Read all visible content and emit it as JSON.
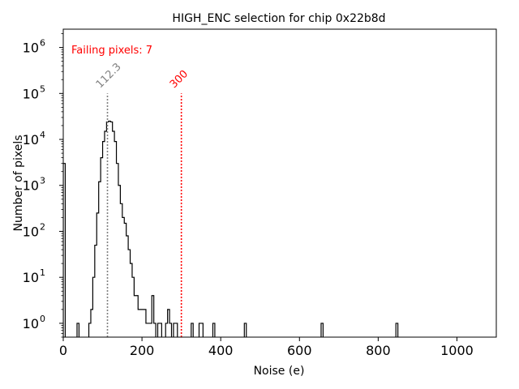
{
  "chart_data": {
    "type": "histogram",
    "title": "HIGH_ENC selection for chip 0x22b8d",
    "xlabel": "Noise (e)",
    "ylabel": "Number of pixels",
    "xlim": [
      0,
      1100
    ],
    "ylim": [
      0.5,
      2500000
    ],
    "yscale": "log",
    "x_ticks": [
      "0",
      "200",
      "400",
      "600",
      "800",
      "1000"
    ],
    "y_ticks": [
      {
        "base": "10",
        "exp": "0"
      },
      {
        "base": "10",
        "exp": "1"
      },
      {
        "base": "10",
        "exp": "2"
      },
      {
        "base": "10",
        "exp": "3"
      },
      {
        "base": "10",
        "exp": "4"
      },
      {
        "base": "10",
        "exp": "5"
      },
      {
        "base": "10",
        "exp": "6"
      }
    ],
    "bin_width": 5,
    "bins": [
      [
        0,
        3000
      ],
      [
        35,
        1
      ],
      [
        65,
        1
      ],
      [
        70,
        2
      ],
      [
        75,
        10
      ],
      [
        80,
        50
      ],
      [
        85,
        250
      ],
      [
        90,
        1200
      ],
      [
        95,
        4000
      ],
      [
        100,
        9000
      ],
      [
        105,
        15000
      ],
      [
        110,
        24000
      ],
      [
        115,
        25000
      ],
      [
        120,
        24000
      ],
      [
        125,
        15000
      ],
      [
        130,
        9000
      ],
      [
        135,
        3000
      ],
      [
        140,
        1000
      ],
      [
        145,
        400
      ],
      [
        150,
        200
      ],
      [
        155,
        150
      ],
      [
        160,
        80
      ],
      [
        165,
        40
      ],
      [
        170,
        20
      ],
      [
        175,
        10
      ],
      [
        180,
        4
      ],
      [
        185,
        4
      ],
      [
        190,
        2
      ],
      [
        195,
        2
      ],
      [
        200,
        2
      ],
      [
        205,
        2
      ],
      [
        210,
        1
      ],
      [
        215,
        1
      ],
      [
        220,
        1
      ],
      [
        225,
        4
      ],
      [
        230,
        1
      ],
      [
        240,
        1
      ],
      [
        245,
        1
      ],
      [
        260,
        1
      ],
      [
        265,
        2
      ],
      [
        270,
        1
      ],
      [
        280,
        1
      ],
      [
        285,
        1
      ],
      [
        325,
        1
      ],
      [
        345,
        1
      ],
      [
        350,
        1
      ],
      [
        380,
        1
      ],
      [
        460,
        1
      ],
      [
        655,
        1
      ],
      [
        845,
        1
      ]
    ],
    "vlines": [
      {
        "x": 112.3,
        "label": "112.3",
        "color": "#808080"
      },
      {
        "x": 300,
        "label": "300",
        "color": "#ff0000"
      }
    ],
    "annotation": {
      "text": "Failing pixels: 7",
      "color": "#ff0000"
    }
  }
}
